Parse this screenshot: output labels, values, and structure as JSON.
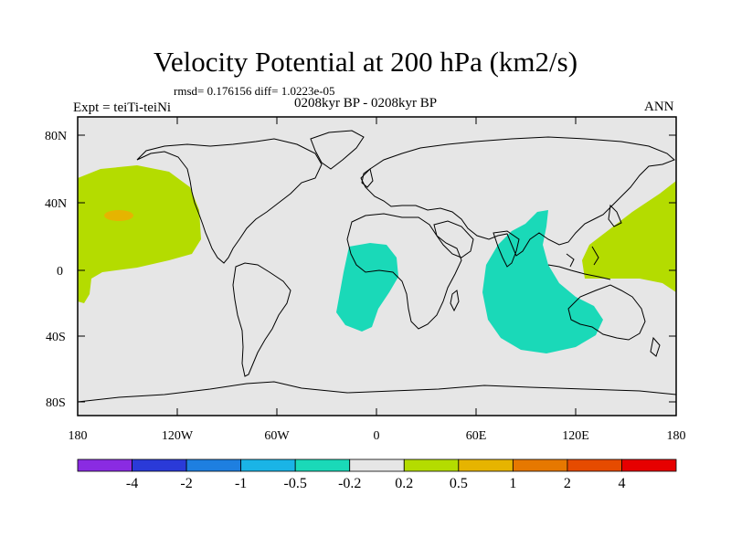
{
  "title": "Velocity Potential at 200 hPa (km2/s)",
  "stats": "rmsd= 0.176156 diff= 1.0223e-05",
  "experiment": "Expt = teiTi-teiNi",
  "period": "0208kyr BP - 0208kyr BP",
  "season": "ANN",
  "axes": {
    "y_ticks": [
      "80N",
      "40N",
      "0",
      "40S",
      "80S"
    ],
    "x_ticks": [
      "180",
      "120W",
      "60W",
      "0",
      "60E",
      "120E",
      "180"
    ]
  },
  "colors": {
    "background_field": "#e6e6e6",
    "land_outline": "#000000"
  },
  "colorbar": {
    "colors": [
      "#8a2be2",
      "#2a3ad8",
      "#1e7fe0",
      "#1ab4e6",
      "#1ad9b8",
      "#e6e6e6",
      "#b4dc00",
      "#e6b400",
      "#e67800",
      "#e64b00",
      "#e60000"
    ],
    "labels": [
      "-4",
      "-2",
      "-1",
      "-0.5",
      "-0.2",
      "0.2",
      "0.5",
      "1",
      "2",
      "4"
    ]
  }
}
